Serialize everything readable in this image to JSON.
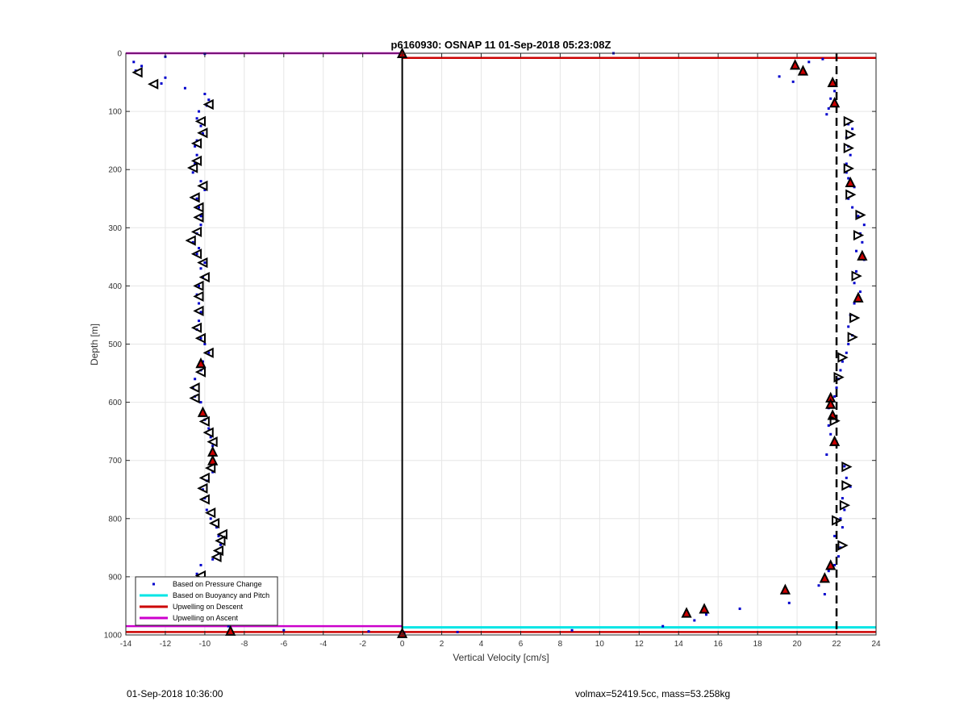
{
  "chart_data": {
    "type": "scatter",
    "title": "p6160930: OSNAP 11 01-Sep-2018 05:23:08Z",
    "xlabel": "Vertical Velocity [cm/s]",
    "ylabel": "Depth [m]",
    "xlim": [
      -14,
      24
    ],
    "ylim": [
      0,
      1000
    ],
    "y_reversed": true,
    "grid": true,
    "x_ticks": [
      -14,
      -12,
      -10,
      -8,
      -6,
      -4,
      -2,
      0,
      2,
      4,
      6,
      8,
      10,
      12,
      14,
      16,
      18,
      20,
      22,
      24
    ],
    "y_ticks": [
      0,
      100,
      200,
      300,
      400,
      500,
      600,
      700,
      800,
      900,
      1000
    ],
    "legend_position": "bottom-left",
    "legend": [
      {
        "label": "Based on Pressure Change",
        "color": "#0000cc",
        "style": "dot"
      },
      {
        "label": "Based on Buoyancy and Pitch",
        "color": "#00e5e5",
        "style": "line"
      },
      {
        "label": "Upwelling on Descent",
        "color": "#cc0000",
        "style": "line"
      },
      {
        "label": "Upwelling on Ascent",
        "color": "#cc00cc",
        "style": "line"
      }
    ],
    "pressure_descent": [
      [
        10.7,
        0
      ],
      [
        21.3,
        10
      ],
      [
        20.6,
        15
      ],
      [
        19.1,
        40
      ],
      [
        19.8,
        49
      ],
      [
        21.9,
        65
      ],
      [
        21.7,
        78
      ],
      [
        21.6,
        95
      ],
      [
        21.5,
        105
      ],
      [
        22.6,
        122
      ],
      [
        22.8,
        130
      ],
      [
        22.5,
        145
      ],
      [
        22.6,
        160
      ],
      [
        22.7,
        175
      ],
      [
        22.5,
        190
      ],
      [
        22.5,
        205
      ],
      [
        22.6,
        215
      ],
      [
        22.9,
        230
      ],
      [
        22.6,
        250
      ],
      [
        22.8,
        265
      ],
      [
        23.1,
        280
      ],
      [
        23.4,
        295
      ],
      [
        23.2,
        310
      ],
      [
        23.3,
        325
      ],
      [
        23.0,
        340
      ],
      [
        23.4,
        355
      ],
      [
        23.0,
        375
      ],
      [
        22.9,
        395
      ],
      [
        23.2,
        410
      ],
      [
        22.9,
        430
      ],
      [
        22.7,
        450
      ],
      [
        22.6,
        470
      ],
      [
        22.8,
        485
      ],
      [
        22.6,
        500
      ],
      [
        22.5,
        515
      ],
      [
        22.3,
        530
      ],
      [
        22.2,
        545
      ],
      [
        22.1,
        560
      ],
      [
        22.0,
        575
      ],
      [
        21.9,
        590
      ],
      [
        21.6,
        610
      ],
      [
        21.7,
        625
      ],
      [
        21.6,
        640
      ],
      [
        21.7,
        655
      ],
      [
        21.8,
        670
      ],
      [
        21.5,
        690
      ],
      [
        22.4,
        710
      ],
      [
        22.5,
        730
      ],
      [
        22.7,
        745
      ],
      [
        22.3,
        765
      ],
      [
        22.4,
        785
      ],
      [
        22.2,
        800
      ],
      [
        22.3,
        815
      ],
      [
        21.9,
        830
      ],
      [
        22.2,
        850
      ],
      [
        22.1,
        865
      ],
      [
        21.9,
        880
      ],
      [
        21.6,
        890
      ],
      [
        21.3,
        905
      ],
      [
        21.1,
        915
      ],
      [
        21.4,
        930
      ],
      [
        19.6,
        945
      ],
      [
        17.1,
        955
      ],
      [
        15.4,
        965
      ],
      [
        14.8,
        975
      ],
      [
        13.2,
        985
      ],
      [
        8.6,
        992
      ],
      [
        2.8,
        995
      ],
      [
        0.1,
        997
      ]
    ],
    "pressure_ascent": [
      [
        0.0,
        997
      ],
      [
        -1.7,
        994
      ],
      [
        -6.0,
        992
      ],
      [
        -8.7,
        990
      ],
      [
        -8.8,
        985
      ],
      [
        -8.9,
        978
      ],
      [
        -9.1,
        965
      ],
      [
        -9.4,
        955
      ],
      [
        -9.6,
        945
      ],
      [
        -9.8,
        935
      ],
      [
        -10.0,
        925
      ],
      [
        -10.3,
        910
      ],
      [
        -10.4,
        895
      ],
      [
        -10.2,
        880
      ],
      [
        -9.6,
        870
      ],
      [
        -9.3,
        860
      ],
      [
        -9.2,
        845
      ],
      [
        -9.3,
        830
      ],
      [
        -9.4,
        815
      ],
      [
        -9.7,
        800
      ],
      [
        -9.9,
        785
      ],
      [
        -10.0,
        765
      ],
      [
        -10.1,
        750
      ],
      [
        -9.9,
        735
      ],
      [
        -9.6,
        720
      ],
      [
        -9.6,
        705
      ],
      [
        -9.5,
        690
      ],
      [
        -9.6,
        675
      ],
      [
        -9.7,
        660
      ],
      [
        -9.8,
        645
      ],
      [
        -10.0,
        630
      ],
      [
        -10.1,
        615
      ],
      [
        -10.2,
        600
      ],
      [
        -10.5,
        590
      ],
      [
        -10.6,
        575
      ],
      [
        -10.5,
        560
      ],
      [
        -10.2,
        545
      ],
      [
        -10.1,
        530
      ],
      [
        -9.8,
        515
      ],
      [
        -10.0,
        500
      ],
      [
        -10.2,
        490
      ],
      [
        -10.4,
        475
      ],
      [
        -10.3,
        460
      ],
      [
        -10.2,
        445
      ],
      [
        -10.3,
        430
      ],
      [
        -10.4,
        415
      ],
      [
        -10.3,
        400
      ],
      [
        -10.1,
        385
      ],
      [
        -10.2,
        370
      ],
      [
        -10.0,
        360
      ],
      [
        -10.4,
        345
      ],
      [
        -10.3,
        335
      ],
      [
        -10.6,
        325
      ],
      [
        -10.4,
        310
      ],
      [
        -10.2,
        295
      ],
      [
        -10.2,
        280
      ],
      [
        -10.3,
        265
      ],
      [
        -10.4,
        250
      ],
      [
        -10.0,
        235
      ],
      [
        -10.2,
        220
      ],
      [
        -10.6,
        205
      ],
      [
        -10.5,
        190
      ],
      [
        -10.4,
        175
      ],
      [
        -10.5,
        160
      ],
      [
        -10.4,
        150
      ],
      [
        -10.1,
        138
      ],
      [
        -10.2,
        125
      ],
      [
        -10.4,
        112
      ],
      [
        -10.3,
        100
      ],
      [
        -9.9,
        90
      ],
      [
        -9.8,
        80
      ],
      [
        -10.0,
        70
      ],
      [
        -11.0,
        60
      ],
      [
        -12.2,
        52
      ],
      [
        -12.0,
        42
      ],
      [
        -13.5,
        30
      ],
      [
        -13.2,
        22
      ],
      [
        -13.6,
        15
      ],
      [
        -12.0,
        6
      ],
      [
        -10.0,
        1
      ],
      [
        0.0,
        0
      ]
    ],
    "triangle_markers_descent": [
      {
        "x": 19.9,
        "y": 20,
        "filled": true
      },
      {
        "x": 20.3,
        "y": 30,
        "filled": true
      },
      {
        "x": 21.8,
        "y": 50,
        "filled": true
      },
      {
        "x": 21.9,
        "y": 85,
        "filled": true
      },
      {
        "x": 22.6,
        "y": 117,
        "filled": false
      },
      {
        "x": 22.7,
        "y": 140,
        "filled": false
      },
      {
        "x": 22.6,
        "y": 163,
        "filled": false
      },
      {
        "x": 22.6,
        "y": 198,
        "filled": false
      },
      {
        "x": 22.7,
        "y": 222,
        "filled": true
      },
      {
        "x": 22.7,
        "y": 243,
        "filled": false
      },
      {
        "x": 23.2,
        "y": 278,
        "filled": false
      },
      {
        "x": 23.1,
        "y": 313,
        "filled": false
      },
      {
        "x": 23.3,
        "y": 348,
        "filled": true
      },
      {
        "x": 23.0,
        "y": 383,
        "filled": false
      },
      {
        "x": 23.1,
        "y": 420,
        "filled": true
      },
      {
        "x": 22.9,
        "y": 455,
        "filled": false
      },
      {
        "x": 22.8,
        "y": 488,
        "filled": false
      },
      {
        "x": 22.3,
        "y": 523,
        "filled": false
      },
      {
        "x": 22.1,
        "y": 557,
        "filled": false
      },
      {
        "x": 21.7,
        "y": 592,
        "filled": true
      },
      {
        "x": 21.7,
        "y": 603,
        "filled": true
      },
      {
        "x": 21.8,
        "y": 622,
        "filled": true
      },
      {
        "x": 21.9,
        "y": 632,
        "filled": false
      },
      {
        "x": 21.9,
        "y": 667,
        "filled": true
      },
      {
        "x": 22.5,
        "y": 711,
        "filled": false
      },
      {
        "x": 22.5,
        "y": 743,
        "filled": false
      },
      {
        "x": 22.4,
        "y": 777,
        "filled": false
      },
      {
        "x": 22.0,
        "y": 803,
        "filled": false
      },
      {
        "x": 22.3,
        "y": 846,
        "filled": false
      },
      {
        "x": 21.7,
        "y": 880,
        "filled": true
      },
      {
        "x": 21.4,
        "y": 902,
        "filled": true
      },
      {
        "x": 19.4,
        "y": 922,
        "filled": true
      },
      {
        "x": 15.3,
        "y": 955,
        "filled": true
      },
      {
        "x": 14.4,
        "y": 962,
        "filled": true
      },
      {
        "x": 0.0,
        "y": 997,
        "filled": true
      }
    ],
    "triangle_markers_ascent": [
      {
        "x": 0.0,
        "y": 0,
        "filled": true
      },
      {
        "x": -13.4,
        "y": 33,
        "filled": false
      },
      {
        "x": -12.6,
        "y": 53,
        "filled": false
      },
      {
        "x": -9.8,
        "y": 88,
        "filled": false
      },
      {
        "x": -10.2,
        "y": 117,
        "filled": false
      },
      {
        "x": -10.1,
        "y": 137,
        "filled": false
      },
      {
        "x": -10.4,
        "y": 155,
        "filled": false
      },
      {
        "x": -10.4,
        "y": 185,
        "filled": false
      },
      {
        "x": -10.6,
        "y": 197,
        "filled": false
      },
      {
        "x": -10.1,
        "y": 228,
        "filled": false
      },
      {
        "x": -10.5,
        "y": 248,
        "filled": false
      },
      {
        "x": -10.3,
        "y": 265,
        "filled": false
      },
      {
        "x": -10.3,
        "y": 282,
        "filled": false
      },
      {
        "x": -10.4,
        "y": 307,
        "filled": false
      },
      {
        "x": -10.7,
        "y": 322,
        "filled": false
      },
      {
        "x": -10.4,
        "y": 345,
        "filled": false
      },
      {
        "x": -10.1,
        "y": 360,
        "filled": false
      },
      {
        "x": -10.0,
        "y": 385,
        "filled": false
      },
      {
        "x": -10.3,
        "y": 400,
        "filled": false
      },
      {
        "x": -10.3,
        "y": 418,
        "filled": false
      },
      {
        "x": -10.3,
        "y": 443,
        "filled": false
      },
      {
        "x": -10.4,
        "y": 472,
        "filled": false
      },
      {
        "x": -10.2,
        "y": 490,
        "filled": false
      },
      {
        "x": -9.8,
        "y": 515,
        "filled": false
      },
      {
        "x": -10.2,
        "y": 533,
        "filled": true
      },
      {
        "x": -10.2,
        "y": 548,
        "filled": false
      },
      {
        "x": -10.5,
        "y": 575,
        "filled": false
      },
      {
        "x": -10.5,
        "y": 593,
        "filled": false
      },
      {
        "x": -10.1,
        "y": 617,
        "filled": true
      },
      {
        "x": -10.0,
        "y": 633,
        "filled": false
      },
      {
        "x": -9.8,
        "y": 652,
        "filled": false
      },
      {
        "x": -9.6,
        "y": 668,
        "filled": false
      },
      {
        "x": -9.6,
        "y": 685,
        "filled": true
      },
      {
        "x": -9.6,
        "y": 700,
        "filled": true
      },
      {
        "x": -9.7,
        "y": 713,
        "filled": false
      },
      {
        "x": -10.0,
        "y": 730,
        "filled": false
      },
      {
        "x": -10.1,
        "y": 748,
        "filled": false
      },
      {
        "x": -10.0,
        "y": 767,
        "filled": false
      },
      {
        "x": -9.7,
        "y": 790,
        "filled": false
      },
      {
        "x": -9.5,
        "y": 808,
        "filled": false
      },
      {
        "x": -9.1,
        "y": 827,
        "filled": false
      },
      {
        "x": -9.2,
        "y": 838,
        "filled": false
      },
      {
        "x": -9.3,
        "y": 855,
        "filled": false
      },
      {
        "x": -9.4,
        "y": 866,
        "filled": false
      },
      {
        "x": -10.2,
        "y": 898,
        "filled": false
      },
      {
        "x": -10.3,
        "y": 908,
        "filled": false
      },
      {
        "x": -9.5,
        "y": 933,
        "filled": false
      },
      {
        "x": -9.6,
        "y": 945,
        "filled": false
      },
      {
        "x": -9.8,
        "y": 962,
        "filled": false
      },
      {
        "x": -8.7,
        "y": 993,
        "filled": true
      }
    ],
    "reference_lines": {
      "vertical_solid_x": 0,
      "vertical_dashed_x": 22,
      "red_lines": [
        {
          "x": [
            0,
            24
          ],
          "y": [
            8,
            8
          ]
        },
        {
          "x": [
            -14,
            24
          ],
          "y": [
            995,
            995
          ]
        }
      ],
      "magenta_lines": [
        {
          "x": [
            -14,
            0
          ],
          "y": [
            0,
            0
          ]
        },
        {
          "x": [
            -14,
            0
          ],
          "y": [
            985,
            985
          ]
        }
      ],
      "cyan_lines": [
        {
          "x": [
            0,
            24
          ],
          "y": [
            987,
            987
          ]
        }
      ]
    }
  },
  "footer": {
    "left": "01-Sep-2018 10:36:00",
    "right": "volmax=52419.5cc, mass=53.258kg"
  },
  "colors": {
    "pressure_dot": "#0000cc",
    "cyan_line": "#00e5e5",
    "red_line": "#cc0000",
    "magenta_line": "#cc00cc",
    "marker_filled": "#cc0000"
  }
}
